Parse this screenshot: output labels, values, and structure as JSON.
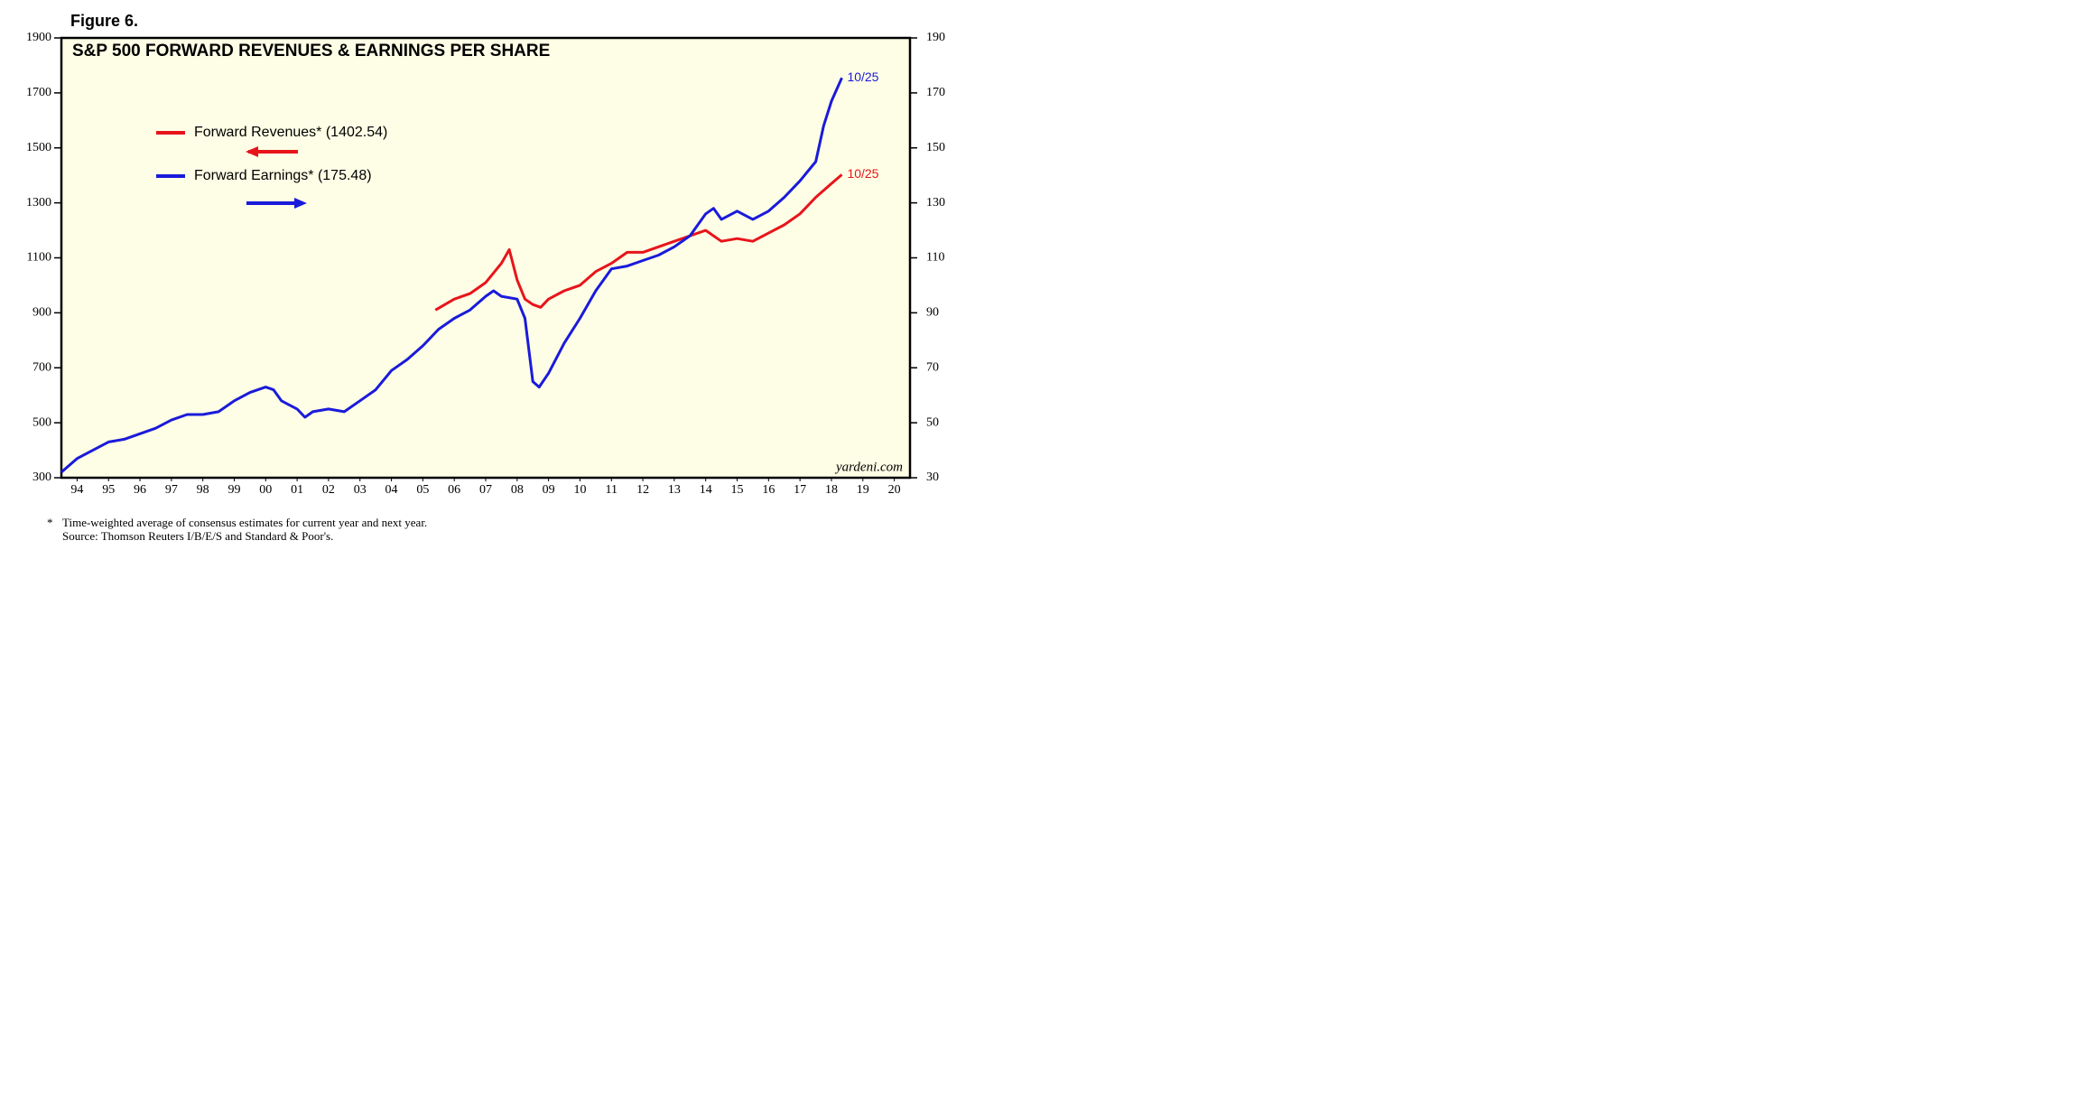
{
  "figure_label": "Figure 6.",
  "chart_data": {
    "type": "line",
    "title": "S&P 500 FORWARD REVENUES & EARNINGS PER SHARE",
    "xlim": [
      1994,
      2021
    ],
    "xticks": [
      {
        "value": 1994.5,
        "label": "94"
      },
      {
        "value": 1995.5,
        "label": "95"
      },
      {
        "value": 1996.5,
        "label": "96"
      },
      {
        "value": 1997.5,
        "label": "97"
      },
      {
        "value": 1998.5,
        "label": "98"
      },
      {
        "value": 1999.5,
        "label": "99"
      },
      {
        "value": 2000.5,
        "label": "00"
      },
      {
        "value": 2001.5,
        "label": "01"
      },
      {
        "value": 2002.5,
        "label": "02"
      },
      {
        "value": 2003.5,
        "label": "03"
      },
      {
        "value": 2004.5,
        "label": "04"
      },
      {
        "value": 2005.5,
        "label": "05"
      },
      {
        "value": 2006.5,
        "label": "06"
      },
      {
        "value": 2007.5,
        "label": "07"
      },
      {
        "value": 2008.5,
        "label": "08"
      },
      {
        "value": 2009.5,
        "label": "09"
      },
      {
        "value": 2010.5,
        "label": "10"
      },
      {
        "value": 2011.5,
        "label": "11"
      },
      {
        "value": 2012.5,
        "label": "12"
      },
      {
        "value": 2013.5,
        "label": "13"
      },
      {
        "value": 2014.5,
        "label": "14"
      },
      {
        "value": 2015.5,
        "label": "15"
      },
      {
        "value": 2016.5,
        "label": "16"
      },
      {
        "value": 2017.5,
        "label": "17"
      },
      {
        "value": 2018.5,
        "label": "18"
      },
      {
        "value": 2019.5,
        "label": "19"
      },
      {
        "value": 2020.5,
        "label": "20"
      }
    ],
    "ylim": [
      300,
      1900
    ],
    "yticks": [
      300,
      500,
      700,
      900,
      1100,
      1300,
      1500,
      1700,
      1900
    ],
    "y2lim": [
      30,
      190
    ],
    "y2ticks": [
      30,
      50,
      70,
      90,
      110,
      130,
      150,
      170,
      190
    ],
    "series": [
      {
        "name": "Forward Revenues* (1402.54)",
        "color": "#e8141b",
        "axis": "y",
        "end_label": "10/25",
        "x": [
          2005.9,
          2006.5,
          2007.0,
          2007.5,
          2008.0,
          2008.25,
          2008.5,
          2008.75,
          2009.0,
          2009.25,
          2009.5,
          2010.0,
          2010.5,
          2011.0,
          2011.5,
          2012.0,
          2012.5,
          2013.0,
          2013.5,
          2014.0,
          2014.5,
          2015.0,
          2015.5,
          2016.0,
          2016.5,
          2017.0,
          2017.5,
          2018.0,
          2018.5,
          2018.83
        ],
        "values": [
          910,
          950,
          970,
          1010,
          1080,
          1130,
          1020,
          950,
          930,
          920,
          950,
          980,
          1000,
          1050,
          1080,
          1120,
          1120,
          1140,
          1160,
          1180,
          1200,
          1160,
          1170,
          1160,
          1190,
          1220,
          1260,
          1320,
          1370,
          1402.54
        ]
      },
      {
        "name": "Forward Earnings* (175.48)",
        "color": "#1a1adb",
        "axis": "y2",
        "end_label": "10/25",
        "x": [
          1994.0,
          1994.5,
          1995.0,
          1995.5,
          1996.0,
          1996.5,
          1997.0,
          1997.5,
          1998.0,
          1998.5,
          1999.0,
          1999.5,
          2000.0,
          2000.5,
          2000.75,
          2001.0,
          2001.5,
          2001.75,
          2002.0,
          2002.5,
          2003.0,
          2003.5,
          2004.0,
          2004.5,
          2005.0,
          2005.5,
          2006.0,
          2006.5,
          2007.0,
          2007.5,
          2007.75,
          2008.0,
          2008.5,
          2008.75,
          2009.0,
          2009.2,
          2009.5,
          2010.0,
          2010.5,
          2011.0,
          2011.5,
          2012.0,
          2012.5,
          2013.0,
          2013.5,
          2014.0,
          2014.5,
          2014.75,
          2015.0,
          2015.5,
          2016.0,
          2016.5,
          2017.0,
          2017.5,
          2018.0,
          2018.25,
          2018.5,
          2018.83
        ],
        "values": [
          32,
          37,
          40,
          43,
          44,
          46,
          48,
          51,
          53,
          53,
          54,
          58,
          61,
          63,
          62,
          58,
          55,
          52,
          54,
          55,
          54,
          58,
          62,
          69,
          73,
          78,
          84,
          88,
          91,
          96,
          98,
          96,
          95,
          88,
          65,
          63,
          68,
          79,
          88,
          98,
          106,
          107,
          109,
          111,
          114,
          118,
          126,
          128,
          124,
          127,
          124,
          127,
          132,
          138,
          145,
          158,
          167,
          175.48
        ]
      }
    ],
    "source_mark": "yardeni.com",
    "footnote_marker": "*",
    "footnote": "Time-weighted average of consensus estimates for current year and next year.",
    "source": "Source: Thomson Reuters I/B/E/S and Standard & Poor's."
  }
}
